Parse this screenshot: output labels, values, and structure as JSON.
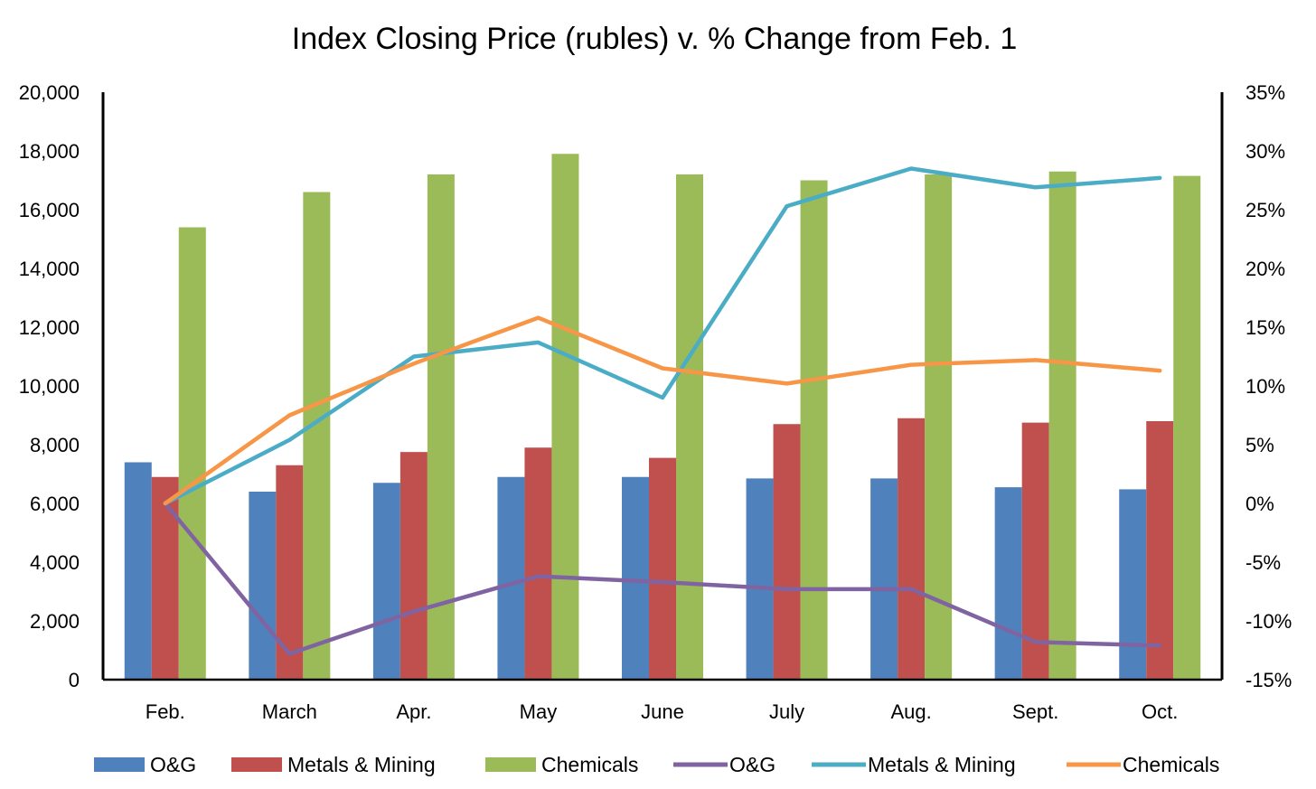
{
  "chart_data": {
    "type": "bar",
    "title": "Index Closing Price (rubles) v. % Change from Feb. 1",
    "xlabel": "",
    "ylabel": "",
    "categories": [
      "Feb.",
      "March",
      "Apr.",
      "May",
      "June",
      "July",
      "Aug.",
      "Sept.",
      "Oct."
    ],
    "y_left": {
      "min": 0,
      "max": 20000,
      "step": 2000,
      "tick_labels": [
        "0",
        "2,000",
        "4,000",
        "6,000",
        "8,000",
        "10,000",
        "12,000",
        "14,000",
        "16,000",
        "18,000",
        "20,000"
      ]
    },
    "y_right": {
      "min": -15,
      "max": 35,
      "step": 5,
      "tick_labels": [
        "-15%",
        "-10%",
        "-5%",
        "0%",
        "5%",
        "10%",
        "15%",
        "20%",
        "25%",
        "30%",
        "35%"
      ]
    },
    "bar_series": [
      {
        "name": "O&G",
        "color": "#4F81BD",
        "axis": "left",
        "values": [
          7400,
          6400,
          6700,
          6900,
          6900,
          6850,
          6850,
          6550,
          6480
        ]
      },
      {
        "name": "Metals & Mining",
        "color": "#C0504D",
        "axis": "left",
        "values": [
          6900,
          7300,
          7750,
          7900,
          7550,
          8700,
          8900,
          8750,
          8800
        ]
      },
      {
        "name": "Chemicals",
        "color": "#9BBB59",
        "axis": "left",
        "values": [
          15400,
          16600,
          17200,
          17900,
          17200,
          17000,
          17200,
          17300,
          17150
        ]
      }
    ],
    "line_series": [
      {
        "name": "O&G",
        "color": "#8064A2",
        "axis": "right",
        "values": [
          0,
          -12.8,
          -9.2,
          -6.2,
          -6.7,
          -7.3,
          -7.3,
          -11.8,
          -12.1
        ]
      },
      {
        "name": "Metals & Mining",
        "color": "#4BACC6",
        "axis": "right",
        "values": [
          0,
          5.4,
          12.5,
          13.7,
          9.0,
          25.3,
          28.5,
          26.9,
          27.7
        ]
      },
      {
        "name": "Chemicals",
        "color": "#F79646",
        "axis": "right",
        "values": [
          0,
          7.5,
          11.9,
          15.8,
          11.5,
          10.2,
          11.8,
          12.2,
          11.3
        ]
      }
    ],
    "grid": false,
    "legend_position": "bottom"
  }
}
